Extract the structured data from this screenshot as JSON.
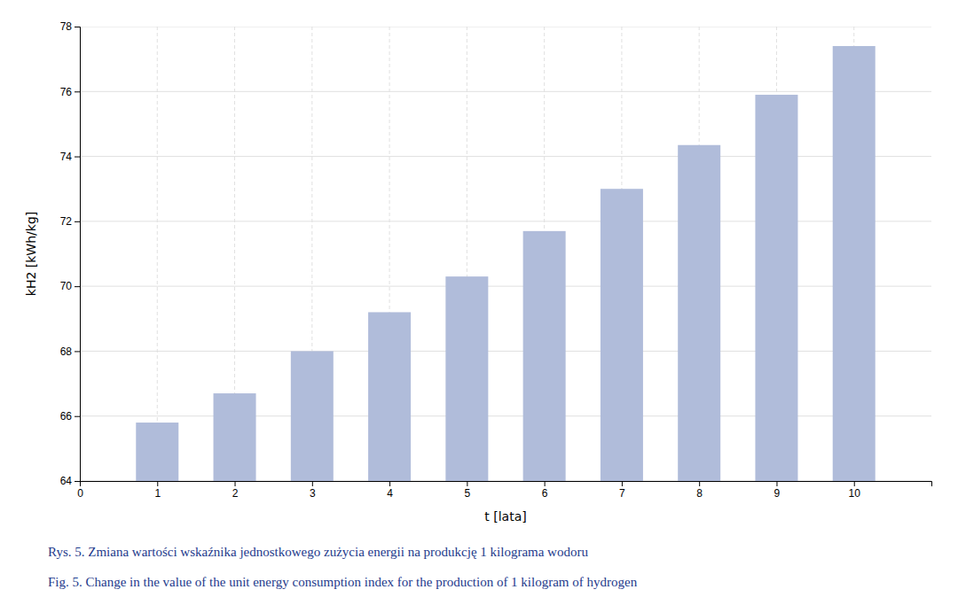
{
  "chart_data": {
    "type": "bar",
    "x": [
      1,
      2,
      3,
      4,
      5,
      6,
      7,
      8,
      9,
      10
    ],
    "values": [
      65.8,
      66.7,
      68.0,
      69.2,
      70.3,
      71.7,
      73.0,
      74.35,
      75.9,
      77.4
    ],
    "color": "#b0bcda",
    "xlim": [
      0,
      11
    ],
    "xticks": [
      0,
      1,
      2,
      3,
      4,
      5,
      6,
      7,
      8,
      9,
      10
    ],
    "ylim": [
      64,
      78
    ],
    "yticks": [
      64,
      66,
      68,
      70,
      72,
      74,
      76,
      78
    ],
    "xlabel": "t [lata]",
    "ylabel": "kH2 [kWh/kg]",
    "grid": true,
    "annotations": [
      {
        "text": "Rys. 5.   Zmiana wartości wskaźnika jednostkowego zużycia energii na produkcję 1 kilograma wodoru",
        "color": "#1e3a8c"
      },
      {
        "text": "Fig. 5.   Change in the value of the unit energy consumption index for the production of 1 kilogram of hydrogen",
        "color": "#1e3a8c"
      }
    ]
  }
}
